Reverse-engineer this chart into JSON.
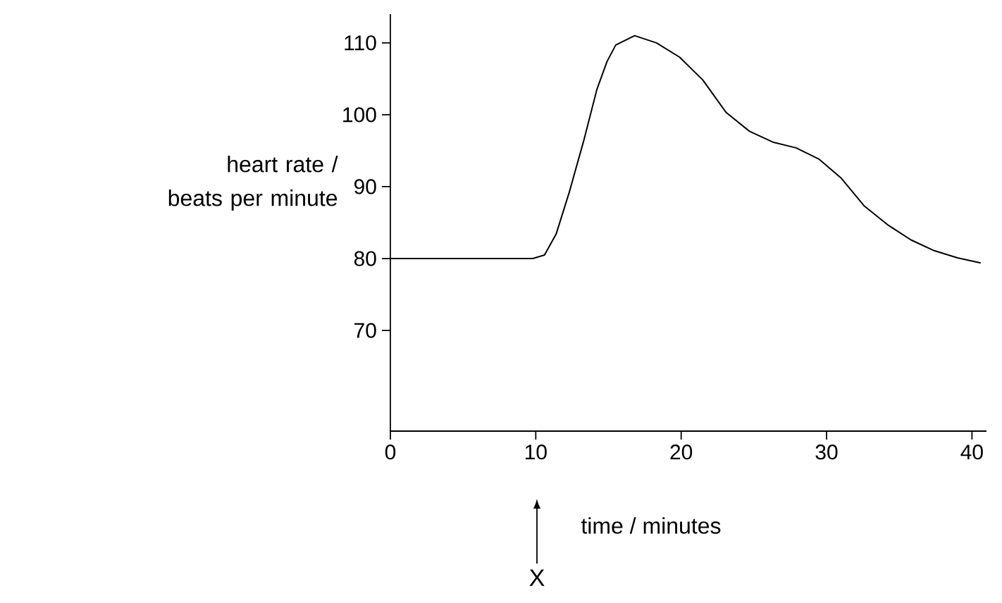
{
  "chart_data": {
    "type": "line",
    "xlabel": "time / minutes",
    "ylabel": "heart rate / beats per minute",
    "x": [
      0,
      9.8,
      10.6,
      11.4,
      12.3,
      13.3,
      14.2,
      14.9,
      15.5,
      16.8,
      18.3,
      19.9,
      21.5,
      23.1,
      24.7,
      26.3,
      27.9,
      29.5,
      31.0,
      32.6,
      34.2,
      35.8,
      37.4,
      39.0,
      40.6
    ],
    "values": [
      80,
      80,
      80.5,
      83.4,
      89.2,
      96.4,
      103.5,
      107.4,
      109.7,
      111,
      110,
      108,
      104.8,
      100.3,
      97.7,
      96.2,
      95.4,
      93.8,
      91.2,
      87.3,
      84.7,
      82.6,
      81.1,
      80.1,
      79.4
    ],
    "color": "#000000",
    "xlim": [
      0,
      41
    ],
    "ylim": [
      56,
      114
    ],
    "xticks": [
      0,
      10,
      20,
      30,
      40
    ],
    "yticks": [
      70,
      80,
      90,
      100,
      110
    ],
    "grid": false,
    "marker": "none",
    "line_style": "solid",
    "annotations": [
      "X"
    ]
  }
}
